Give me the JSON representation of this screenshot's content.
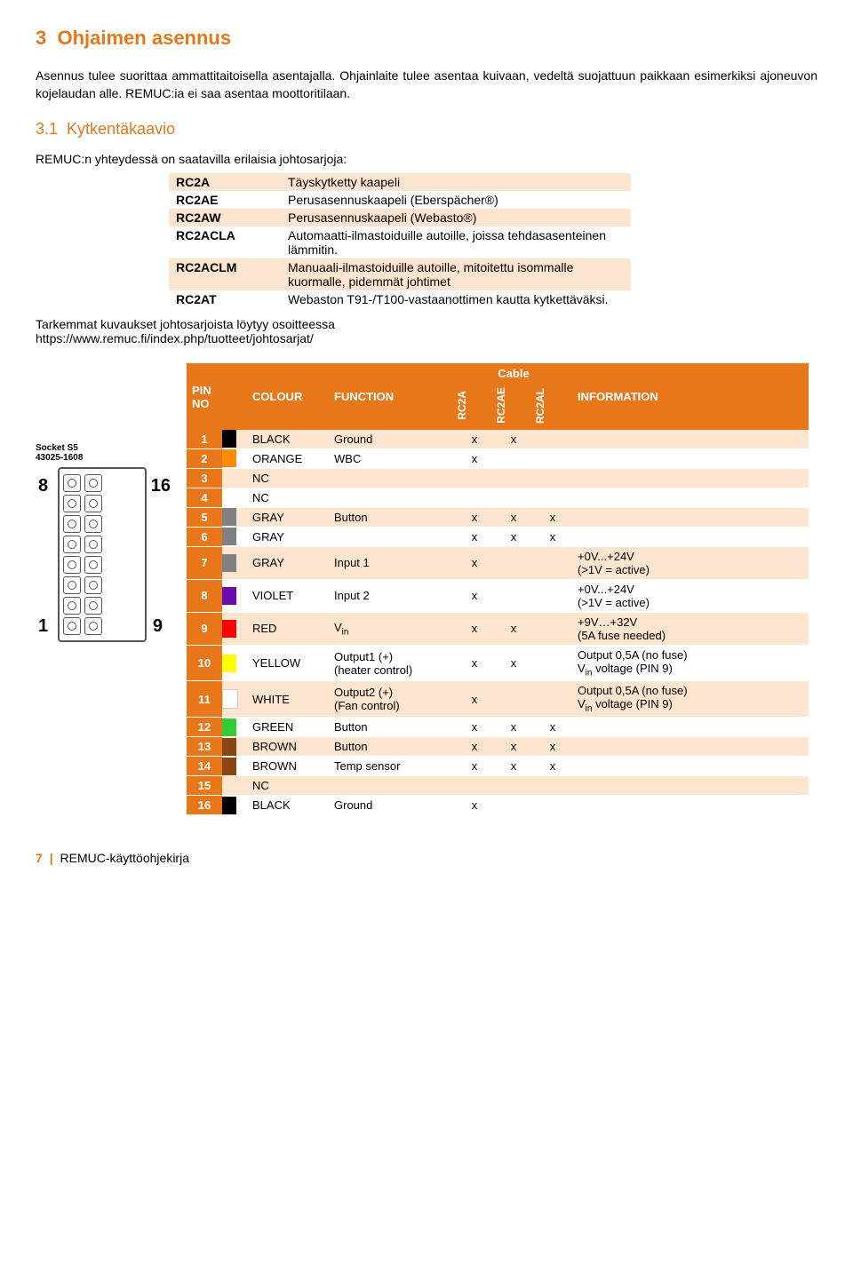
{
  "section": {
    "number": "3",
    "title": "Ohjaimen asennus",
    "body": "Asennus tulee suorittaa ammattitaitoisella asentajalla. Ohjainlaite tulee asentaa kuivaan, vedeltä suojattuun paikkaan esimerkiksi ajoneuvon kojelaudan alle. REMUC:ia ei saa asentaa moottoritilaan."
  },
  "subsection": {
    "number": "3.1",
    "title": "Kytkentäkaavio",
    "intro": "REMUC:n yhteydessä on saatavilla erilaisia johtosarjoja:"
  },
  "cables": [
    {
      "code": "RC2A",
      "desc": "Täyskytketty kaapeli",
      "shade": true
    },
    {
      "code": "RC2AE",
      "desc": "Perusasennuskaapeli (Eberspächer®)",
      "shade": false
    },
    {
      "code": "RC2AW",
      "desc": "Perusasennuskaapeli (Webasto®)",
      "shade": true
    },
    {
      "code": "RC2ACLA",
      "desc": "Automaatti-ilmastoiduille autoille, joissa tehdasasenteinen lämmitin.",
      "shade": false
    },
    {
      "code": "RC2ACLM",
      "desc": "Manuaali-ilmastoiduille autoille, mitoitettu isommalle kuormalle, pidemmät johtimet",
      "shade": true
    },
    {
      "code": "RC2AT",
      "desc": "Webaston T91-/T100-vastaanottimen kautta kytkettäväksi.",
      "shade": false
    }
  ],
  "link_text1": "Tarkemmat kuvaukset johtosarjoista löytyy osoitteessa",
  "link_text2": "https://www.remuc.fi/index.php/tuotteet/johtosarjat/",
  "socket": {
    "label1": "Socket S5",
    "label2": "43025-1608",
    "n8": "8",
    "n16": "16",
    "n1": "1",
    "n9": "9"
  },
  "pin_headers": {
    "pin_no": "PIN NO",
    "colour": "COLOUR",
    "function": "FUNCTION",
    "cable": "Cable",
    "c1": "RC2A",
    "c2": "RC2AE",
    "c3": "RC2AL",
    "info": "INFORMATION"
  },
  "swatch_colors": {
    "BLACK": "#000000",
    "ORANGE": "#ff8c00",
    "NC": "transparent",
    "GRAY": "#808080",
    "VIOLET": "#6a0dad",
    "RED": "#ff0000",
    "YELLOW": "#ffff00",
    "WHITE": "#ffffff",
    "GREEN": "#33cc33",
    "BROWN": "#8b4513"
  },
  "pins": [
    {
      "no": "1",
      "colour": "BLACK",
      "func": "Ground",
      "c1": "x",
      "c2": "x",
      "c3": "",
      "info": "",
      "stripe": true
    },
    {
      "no": "2",
      "colour": "ORANGE",
      "func": "WBC",
      "c1": "x",
      "c2": "",
      "c3": "",
      "info": "",
      "stripe": false
    },
    {
      "no": "3",
      "colour": "NC",
      "func": "",
      "c1": "",
      "c2": "",
      "c3": "",
      "info": "",
      "stripe": true
    },
    {
      "no": "4",
      "colour": "NC",
      "func": "",
      "c1": "",
      "c2": "",
      "c3": "",
      "info": "",
      "stripe": false
    },
    {
      "no": "5",
      "colour": "GRAY",
      "func": "Button",
      "c1": "x",
      "c2": "x",
      "c3": "x",
      "info": "",
      "stripe": true
    },
    {
      "no": "6",
      "colour": "GRAY",
      "func": "",
      "c1": "x",
      "c2": "x",
      "c3": "x",
      "info": "",
      "stripe": false
    },
    {
      "no": "7",
      "colour": "GRAY",
      "func": "Input 1",
      "c1": "x",
      "c2": "",
      "c3": "",
      "info": "+0V...+24V\n(>1V = active)",
      "stripe": true
    },
    {
      "no": "8",
      "colour": "VIOLET",
      "func": "Input 2",
      "c1": "x",
      "c2": "",
      "c3": "",
      "info": "+0V...+24V\n(>1V = active)",
      "stripe": false
    },
    {
      "no": "9",
      "colour": "RED",
      "func": "Vin",
      "c1": "x",
      "c2": "x",
      "c3": "",
      "info": "+9V…+32V\n(5A fuse needed)",
      "stripe": true,
      "sub": true
    },
    {
      "no": "10",
      "colour": "YELLOW",
      "func": "Output1 (+)\n(heater control)",
      "c1": "x",
      "c2": "x",
      "c3": "",
      "info": "Output 0,5A (no fuse)\nVin voltage (PIN 9)",
      "stripe": false,
      "infosub": true
    },
    {
      "no": "11",
      "colour": "WHITE",
      "func": "Output2 (+)\n(Fan control)",
      "c1": "x",
      "c2": "",
      "c3": "",
      "info": "Output 0,5A (no fuse)\nVin voltage (PIN 9)",
      "stripe": true,
      "infosub": true
    },
    {
      "no": "12",
      "colour": "GREEN",
      "func": "Button",
      "c1": "x",
      "c2": "x",
      "c3": "x",
      "info": "",
      "stripe": false
    },
    {
      "no": "13",
      "colour": "BROWN",
      "func": "Button",
      "c1": "x",
      "c2": "x",
      "c3": "x",
      "info": "",
      "stripe": true
    },
    {
      "no": "14",
      "colour": "BROWN",
      "func": "Temp sensor",
      "c1": "x",
      "c2": "x",
      "c3": "x",
      "info": "",
      "stripe": false
    },
    {
      "no": "15",
      "colour": "NC",
      "func": "",
      "c1": "",
      "c2": "",
      "c3": "",
      "info": "",
      "stripe": true
    },
    {
      "no": "16",
      "colour": "BLACK",
      "func": "Ground",
      "c1": "x",
      "c2": "",
      "c3": "",
      "info": "",
      "stripe": false
    }
  ],
  "footer": {
    "page": "7",
    "doc": "REMUC-käyttöohjekirja"
  }
}
